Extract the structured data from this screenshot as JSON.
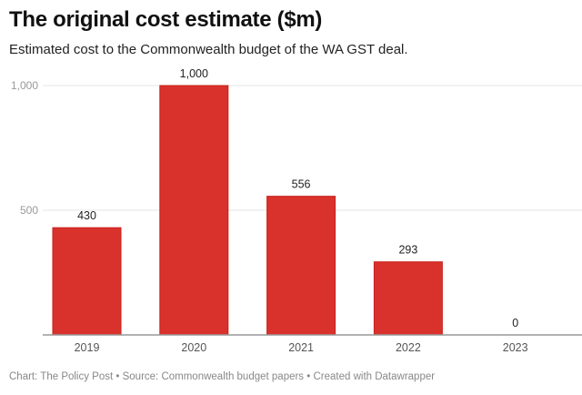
{
  "chart_data": {
    "type": "bar",
    "title": "The original cost estimate ($m)",
    "subtitle": "Estimated cost to the Commonwealth budget of the WA GST deal.",
    "categories": [
      "2019",
      "2020",
      "2021",
      "2022",
      "2023"
    ],
    "values": [
      430,
      1000,
      556,
      293,
      0
    ],
    "data_labels": [
      "430",
      "1,000",
      "556",
      "293",
      "0"
    ],
    "yticks": [
      500,
      1000
    ],
    "ytick_labels": [
      "500",
      "1,000"
    ],
    "ylim": [
      0,
      1000
    ],
    "grid": true,
    "bar_color": "#d9312b",
    "xlabel": "",
    "ylabel": ""
  },
  "footer": "Chart: The Policy Post • Source: Commonwealth budget papers • Created with Datawrapper"
}
